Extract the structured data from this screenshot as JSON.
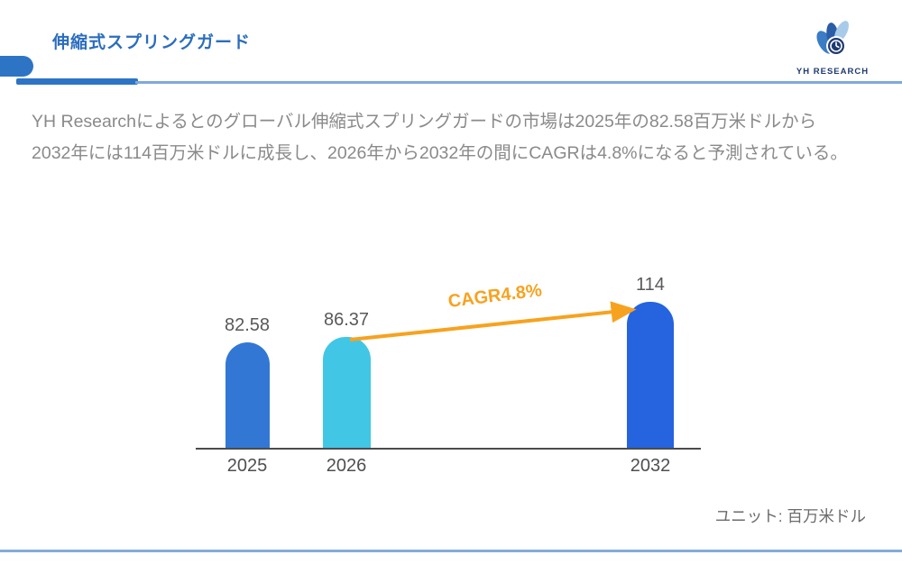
{
  "header": {
    "title": "伸縮式スプリングガード",
    "accent_blue": "#2E74C4",
    "thin_line_blue": "#7FA9DB"
  },
  "logo": {
    "text": "YH RESEARCH",
    "navy": "#1E3A70",
    "petal_medium_blue": "#3B7CC4",
    "petal_dark_blue": "#2B5CA6",
    "petal_light_blue": "#A9CBEA"
  },
  "intro": {
    "text": "YH Researchによるとのグローバル伸縮式スプリングガードの市場は2025年の82.58百万米ドルから2032年には114百万米ドルに成長し、2026年から2032年の間にCAGRは4.8%になると予測されている。"
  },
  "chart_data": {
    "type": "bar",
    "categories": [
      "2025",
      "2026",
      "2032"
    ],
    "values": [
      82.58,
      86.37,
      114
    ],
    "value_labels": [
      "82.58",
      "86.37",
      "114"
    ],
    "series_name": "",
    "title": "",
    "xlabel": "",
    "ylabel": "",
    "ylim": [
      0,
      120
    ],
    "grid": false,
    "legend": false,
    "bar_colors": [
      "#3377D4",
      "#42C6E6",
      "#2563DF"
    ],
    "annotation": "CAGR4.8%",
    "annotation_color": "#F7A21F",
    "arrow_color": "#F7A21F",
    "unit_label": "ユニット: 百万米ドル",
    "axis_color": "#4B4B4B"
  }
}
